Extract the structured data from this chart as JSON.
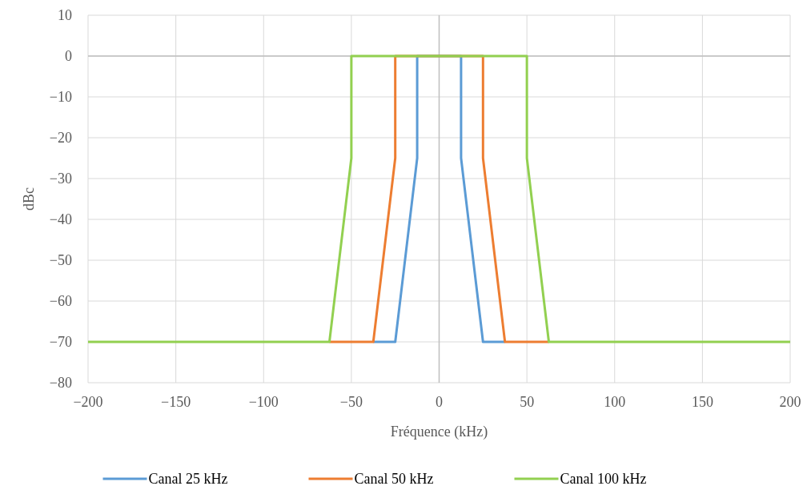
{
  "chart_data": {
    "type": "line",
    "xlabel": "Fréquence (kHz)",
    "ylabel": "dBc",
    "xlim": [
      -200,
      200
    ],
    "xticks": [
      -200,
      -150,
      -100,
      -50,
      0,
      50,
      100,
      150,
      200
    ],
    "ylim": [
      -80,
      10
    ],
    "yticks": [
      -80,
      -70,
      -60,
      -50,
      -40,
      -30,
      -20,
      -10,
      0,
      10
    ],
    "grid": true,
    "legend": "bottom",
    "line_style": "solid",
    "marker": "none",
    "series": [
      {
        "name": "Canal 25 kHz",
        "color": "#5b9bd5",
        "x": [
          -37.5,
          -25,
          -12.5,
          -12.5,
          12.5,
          12.5,
          25,
          37.5
        ],
        "values": [
          -70,
          -70,
          -25,
          0,
          0,
          -25,
          -70,
          -70
        ]
      },
      {
        "name": "Canal 50 kHz",
        "color": "#ed7d31",
        "x": [
          -62.5,
          -37.5,
          -25,
          -25,
          25,
          25,
          37.5,
          62.5
        ],
        "values": [
          -70,
          -70,
          -25,
          0,
          0,
          -25,
          -70,
          -70
        ]
      },
      {
        "name": "Canal 100 kHz",
        "color": "#92d050",
        "x": [
          -200,
          -62.5,
          -50,
          -50,
          50,
          50,
          62.5,
          200
        ],
        "values": [
          -70,
          -70,
          -25,
          0,
          0,
          -25,
          -70,
          -70
        ]
      }
    ]
  }
}
